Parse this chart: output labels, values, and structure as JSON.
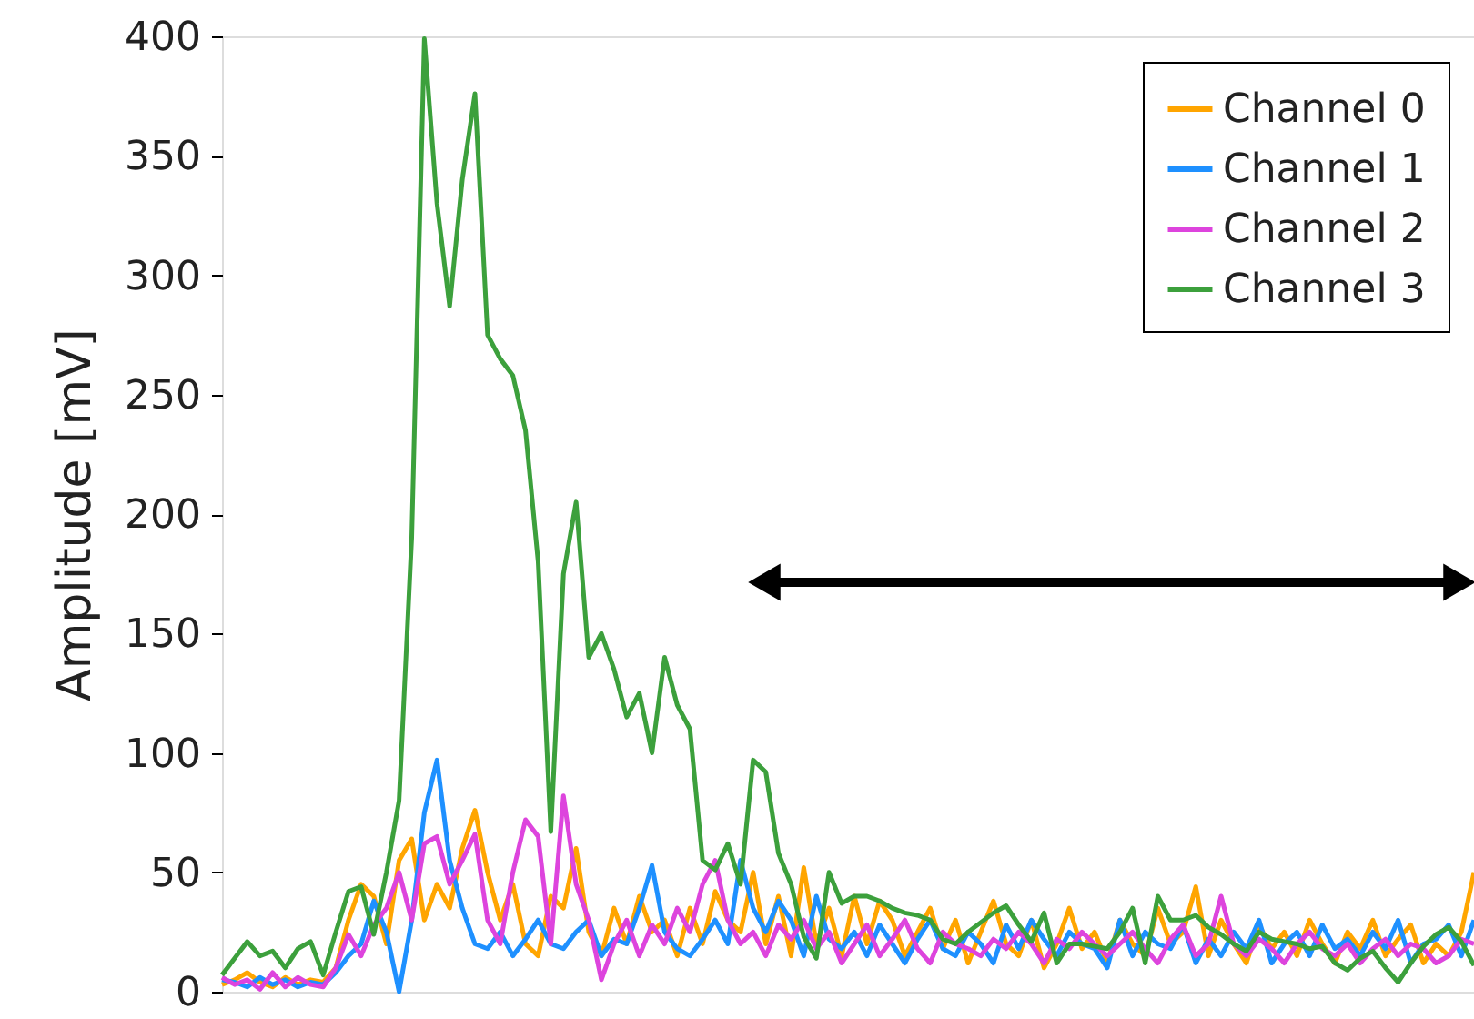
{
  "chart_data": {
    "type": "line",
    "ylabel": "Amplitude [mV]",
    "categories": [
      null,
      null,
      null,
      null,
      null,
      null,
      null,
      null,
      null,
      null,
      null,
      null,
      null,
      null,
      null,
      null,
      null,
      null,
      null,
      null,
      null,
      null,
      null,
      null,
      null,
      null,
      null,
      null,
      null,
      null,
      null,
      null,
      null,
      null,
      null,
      null,
      null,
      null,
      null,
      null,
      null,
      null,
      null,
      null,
      null,
      null,
      null,
      null,
      null,
      null,
      null,
      null,
      null,
      null,
      null,
      null,
      null,
      null,
      null,
      null,
      null,
      null,
      null,
      null,
      null,
      null,
      null,
      null,
      null,
      null,
      null,
      null,
      null,
      null,
      null,
      null,
      null,
      null,
      null,
      null,
      null,
      null,
      null,
      null,
      null,
      null,
      null,
      null,
      null,
      null,
      null,
      null,
      null,
      null,
      null,
      null,
      null,
      null,
      null,
      null
    ],
    "ylim": [
      0,
      400
    ],
    "yticks": [
      0,
      50,
      100,
      150,
      200,
      250,
      300,
      350,
      400
    ],
    "grid": false,
    "legend": "top right",
    "marker": "none",
    "line_style": "solid",
    "series": [
      {
        "name": "Channel 0",
        "color": "#ffa500",
        "values": [
          3,
          5,
          8,
          4,
          2,
          6,
          3,
          5,
          4,
          10,
          30,
          45,
          40,
          20,
          55,
          64,
          30,
          45,
          35,
          60,
          76,
          50,
          30,
          45,
          20,
          15,
          40,
          35,
          60,
          25,
          15,
          35,
          20,
          40,
          25,
          30,
          15,
          35,
          20,
          42,
          30,
          25,
          50,
          20,
          40,
          15,
          52,
          20,
          35,
          15,
          40,
          20,
          38,
          30,
          15,
          25,
          35,
          18,
          30,
          12,
          25,
          38,
          20,
          15,
          30,
          10,
          20,
          35,
          18,
          25,
          12,
          30,
          20,
          15,
          35,
          20,
          25,
          44,
          15,
          30,
          20,
          12,
          28,
          18,
          25,
          15,
          30,
          20,
          12,
          25,
          18,
          30,
          15,
          22,
          28,
          12,
          20,
          15,
          25,
          50
        ]
      },
      {
        "name": "Channel 1",
        "color": "#1e90ff",
        "values": [
          5,
          4,
          2,
          6,
          3,
          5,
          2,
          4,
          3,
          8,
          15,
          20,
          38,
          25,
          0,
          30,
          75,
          97,
          55,
          35,
          20,
          18,
          25,
          15,
          22,
          30,
          20,
          18,
          25,
          30,
          15,
          22,
          20,
          35,
          53,
          25,
          18,
          15,
          22,
          30,
          20,
          55,
          35,
          25,
          38,
          30,
          15,
          40,
          22,
          18,
          25,
          15,
          28,
          20,
          12,
          22,
          30,
          18,
          15,
          25,
          20,
          12,
          28,
          18,
          30,
          22,
          15,
          25,
          20,
          18,
          10,
          30,
          15,
          25,
          20,
          18,
          28,
          12,
          22,
          15,
          25,
          18,
          30,
          12,
          20,
          25,
          15,
          28,
          18,
          22,
          15,
          25,
          18,
          30,
          12,
          20,
          22,
          28,
          15,
          30
        ]
      },
      {
        "name": "Channel 2",
        "color": "#dd44dd",
        "values": [
          6,
          3,
          5,
          1,
          8,
          2,
          6,
          3,
          2,
          10,
          24,
          15,
          28,
          35,
          50,
          30,
          62,
          65,
          45,
          55,
          66,
          30,
          20,
          50,
          72,
          65,
          20,
          82,
          45,
          30,
          5,
          20,
          30,
          15,
          28,
          20,
          35,
          25,
          45,
          55,
          30,
          20,
          25,
          15,
          28,
          22,
          30,
          18,
          25,
          12,
          20,
          28,
          15,
          22,
          30,
          18,
          12,
          25,
          20,
          18,
          15,
          22,
          18,
          25,
          20,
          12,
          22,
          18,
          25,
          20,
          15,
          20,
          25,
          18,
          12,
          22,
          28,
          15,
          20,
          40,
          20,
          15,
          22,
          18,
          12,
          20,
          25,
          18,
          15,
          20,
          12,
          18,
          22,
          15,
          20,
          18,
          12,
          15,
          22,
          20
        ]
      },
      {
        "name": "Channel 3",
        "color": "#3ca03c",
        "values": [
          7,
          14,
          21,
          15,
          17,
          10,
          18,
          21,
          7,
          25,
          42,
          44,
          24,
          50,
          80,
          190,
          399,
          330,
          287,
          340,
          376,
          275,
          265,
          258,
          235,
          180,
          67,
          175,
          205,
          140,
          150,
          135,
          115,
          125,
          100,
          140,
          120,
          110,
          55,
          51,
          62,
          45,
          97,
          92,
          58,
          45,
          23,
          14,
          50,
          37,
          40,
          40,
          38,
          35,
          33,
          32,
          30,
          22,
          20,
          25,
          29,
          33,
          36,
          28,
          21,
          33,
          12,
          20,
          20,
          19,
          18,
          25,
          35,
          12,
          40,
          30,
          30,
          32,
          27,
          24,
          20,
          17,
          25,
          22,
          21,
          20,
          18,
          19,
          12,
          9,
          14,
          17,
          10,
          4,
          12,
          19,
          24,
          27,
          21,
          11
        ]
      }
    ]
  }
}
